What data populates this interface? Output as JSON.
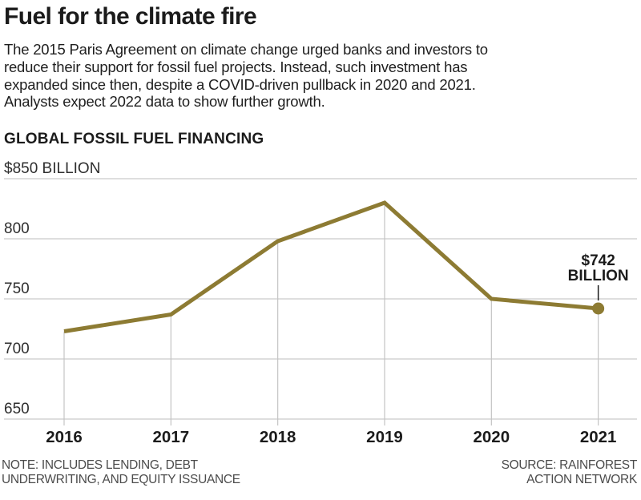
{
  "header": {
    "title": "Fuel for the climate fire",
    "description_lines": [
      "The 2015 Paris Agreement on climate change urged banks and investors to",
      "reduce their support for fossil fuel projects. Instead, such investment has",
      "expanded since then, despite a COVID-driven pullback in 2020 and 2021.",
      "Analysts expect 2022 data to show further growth."
    ]
  },
  "chart_heading": "GLOBAL FOSSIL FUEL FINANCING",
  "chart_data": {
    "type": "line",
    "title": "GLOBAL FOSSIL FUEL FINANCING",
    "x": [
      "2016",
      "2017",
      "2018",
      "2019",
      "2020",
      "2021"
    ],
    "values": [
      723,
      737,
      798,
      830,
      750,
      742
    ],
    "unit": "billion USD",
    "xlabel": "",
    "ylabel": "",
    "ylim": [
      640,
      860
    ],
    "yticks": [
      850,
      800,
      750,
      700,
      650
    ],
    "ytick_labels": [
      "$850 BILLION",
      "800",
      "750",
      "700",
      "650"
    ],
    "grid": true,
    "legend": "none",
    "annotation": {
      "lines": [
        "$742",
        "BILLION"
      ],
      "x": "2021",
      "value": 742
    }
  },
  "footer": {
    "note_lines": [
      "NOTE: INCLUDES LENDING, DEBT",
      "UNDERWRITING, AND EQUITY ISSUANCE"
    ],
    "source_lines": [
      "SOURCE: RAINFOREST",
      "ACTION NETWORK"
    ]
  },
  "colors": {
    "line": "#8d7b33",
    "marker": "#8d7b33",
    "grid": "#cacaca",
    "drop_line": "#c4c4c4",
    "text_dark": "#1b1b1b",
    "tick_text": "#2e2e2e",
    "footer_text": "#4c4c4c"
  }
}
